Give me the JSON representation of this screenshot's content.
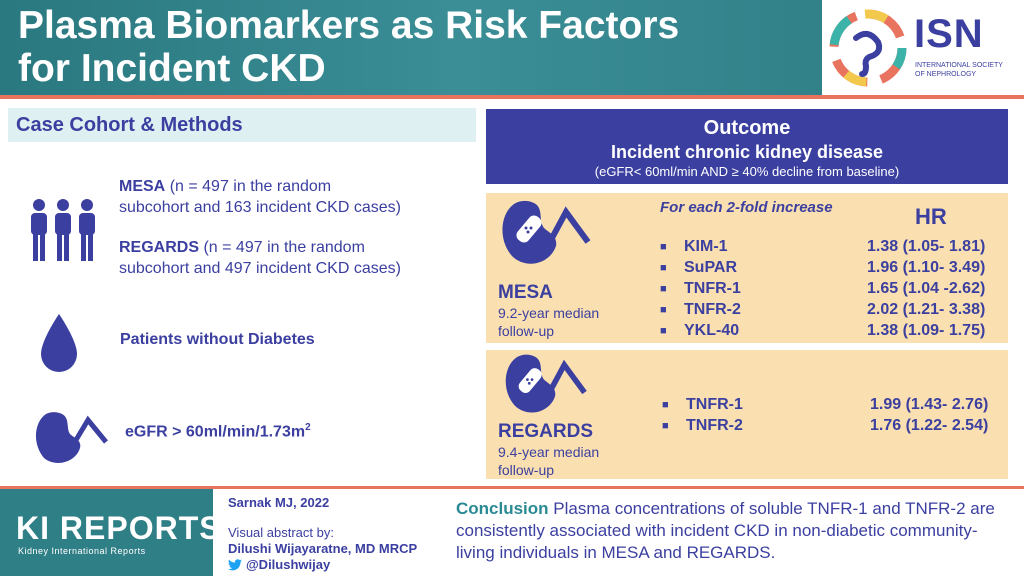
{
  "header": {
    "title_line1": "Plasma Biomarkers as Risk Factors",
    "title_line2": "for Incident CKD",
    "org_name": "ISN",
    "org_full_line1": "INTERNATIONAL SOCIETY",
    "org_full_line2": "OF NEPHROLOGY"
  },
  "methods": {
    "heading": "Case Cohort & Methods",
    "mesa_name": "MESA",
    "mesa_desc_a": "(n = 497 in the random",
    "mesa_desc_b": "subcohort and 163 incident CKD cases)",
    "regards_name": "REGARDS",
    "regards_desc_a": "(n = 497 in the random",
    "regards_desc_b": "subcohort and 497 incident CKD cases)",
    "diabetes": "Patients without Diabetes",
    "egfr_main": "eGFR > 60ml/min/1.73m",
    "egfr_sup": "2"
  },
  "outcome": {
    "heading": "Outcome",
    "subheading": "Incident chronic kidney disease",
    "definition": "(eGFR< 60ml/min AND ≥ 40% decline from baseline)"
  },
  "mesa": {
    "name": "MESA",
    "followup_a": "9.2-year median",
    "followup_b": "follow-up",
    "per_increase": "For each 2-fold increase",
    "hr_label": "HR",
    "rows": [
      {
        "marker": "KIM-1",
        "hr": "1.38 (1.05- 1.81)"
      },
      {
        "marker": "SuPAR",
        "hr": "1.96 (1.10- 3.49)"
      },
      {
        "marker": "TNFR-1",
        "hr": "1.65 (1.04 -2.62)"
      },
      {
        "marker": "TNFR-2",
        "hr": "2.02 (1.21- 3.38)"
      },
      {
        "marker": "YKL-40",
        "hr": "1.38 (1.09- 1.75)"
      }
    ]
  },
  "regards": {
    "name": "REGARDS",
    "followup_a": "9.4-year median",
    "followup_b": "follow-up",
    "rows": [
      {
        "marker": "TNFR-1",
        "hr": "1.99 (1.43- 2.76)"
      },
      {
        "marker": "TNFR-2",
        "hr": "1.76 (1.22- 2.54)"
      }
    ]
  },
  "footer": {
    "journal": "KI REPORTS",
    "journal_full": "Kidney International Reports",
    "citation": "Sarnak MJ, 2022",
    "abstract_by": "Visual abstract by:",
    "author": "Dilushi Wijayaratne, MD MRCP",
    "twitter": "@Dilushwijay",
    "conclusion_head": "Conclusion",
    "conclusion_text": " Plasma concentrations of soluble TNFR-1 and TNFR-2 are consistently associated with incident CKD in non-diabetic community-living individuals in MESA and REGARDS."
  },
  "colors": {
    "teal": "#2f7f86",
    "indigo": "#3b3fa0",
    "coral": "#e8735e",
    "sand": "#fae0b0"
  }
}
